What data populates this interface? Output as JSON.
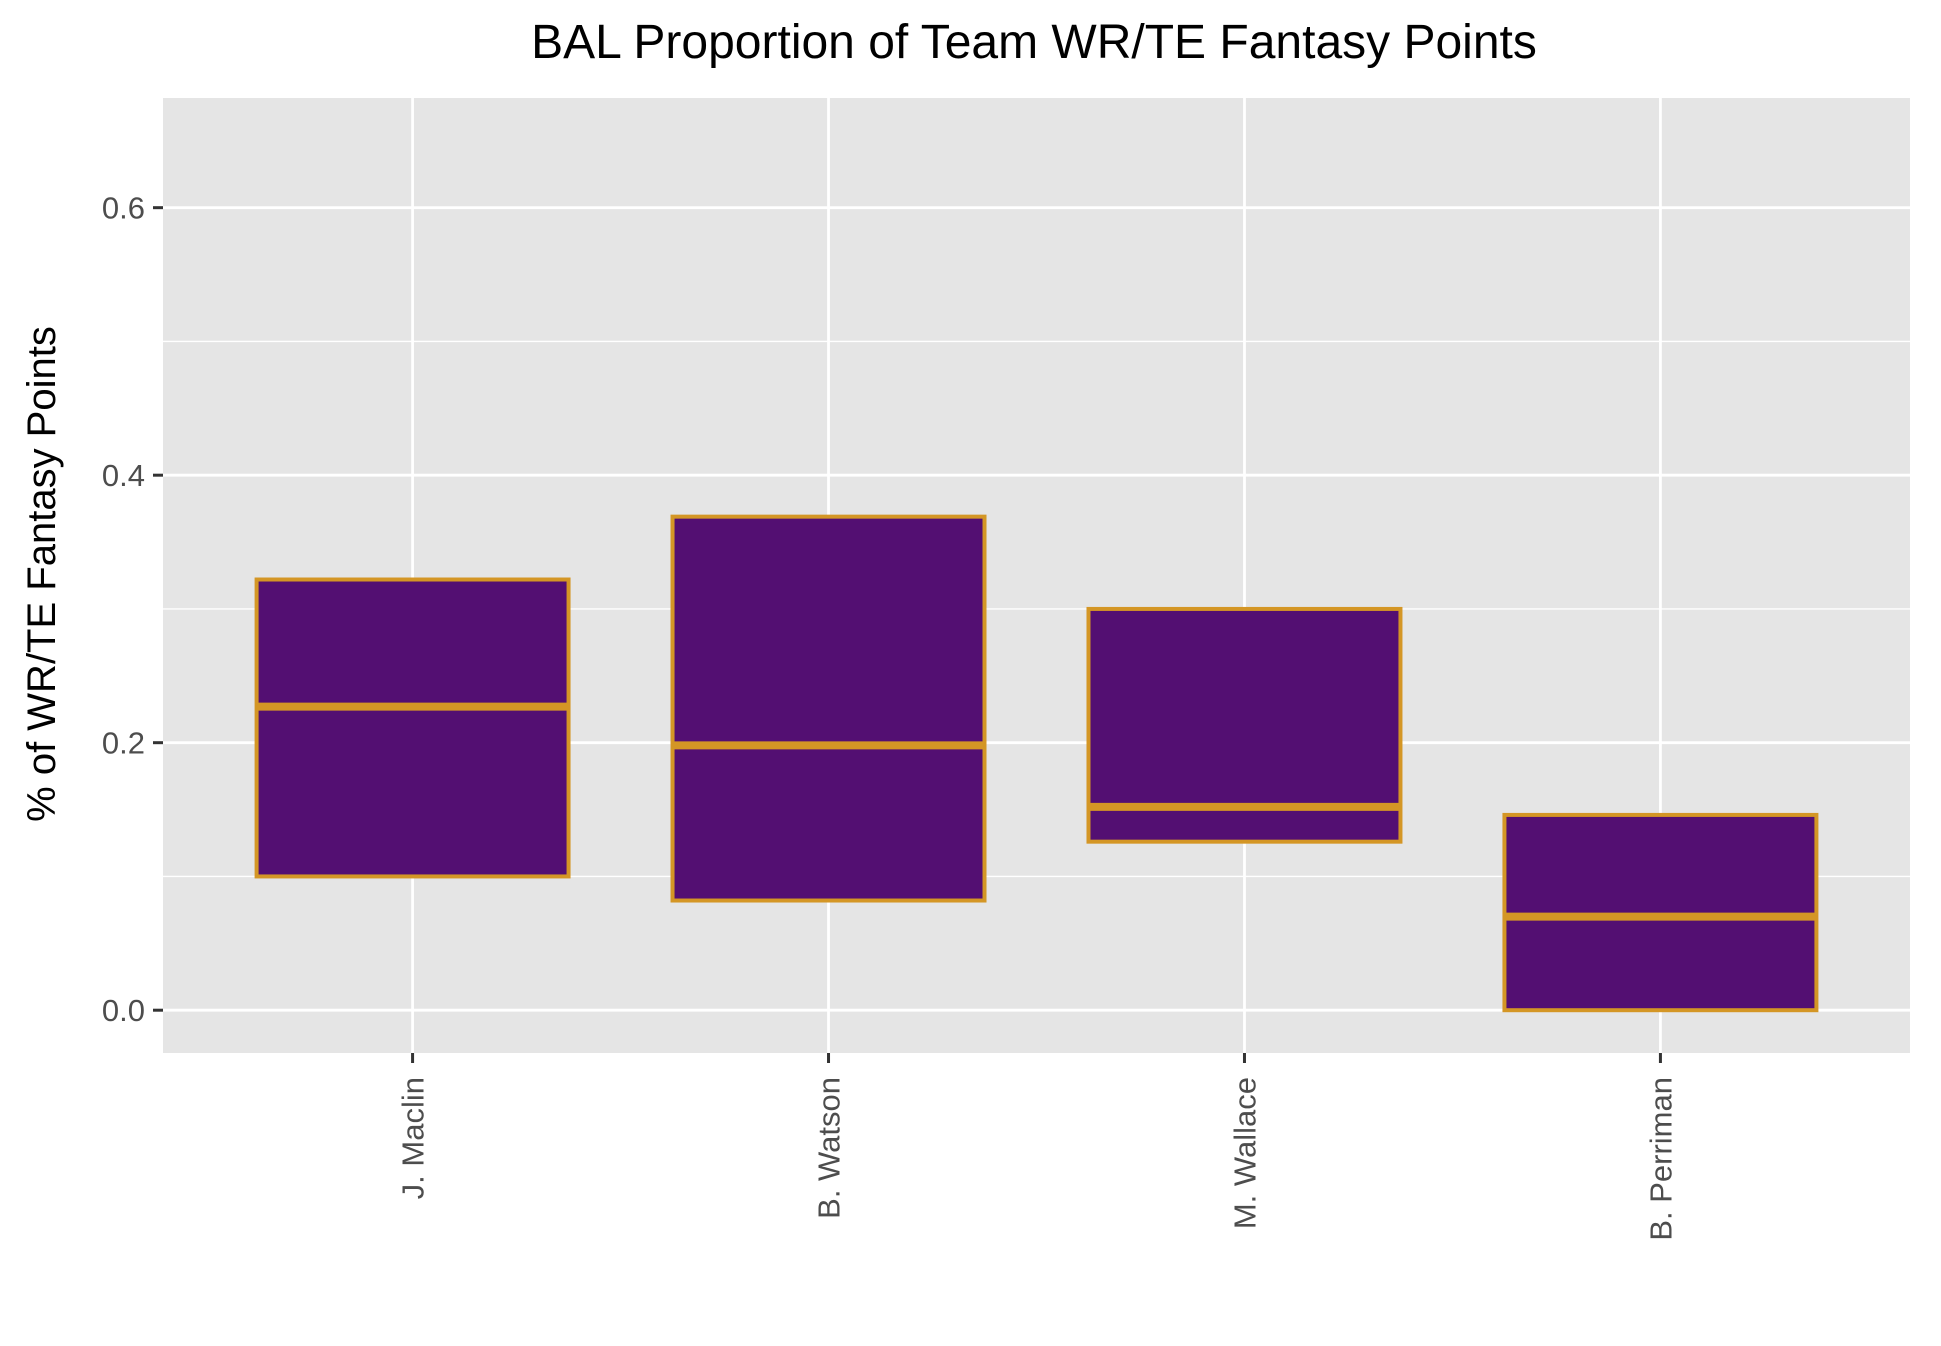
{
  "chart_data": {
    "type": "boxplot",
    "title": "BAL Proportion of Team WR/TE Fantasy Points",
    "xlabel": "",
    "ylabel": "% of WR/TE Fantasy Points",
    "categories": [
      "J. Maclin",
      "B. Watson",
      "M. Wallace",
      "B. Perriman"
    ],
    "boxes": [
      {
        "category": "J. Maclin",
        "q1": 0.1,
        "median": 0.227,
        "q3": 0.322
      },
      {
        "category": "B. Watson",
        "q1": 0.082,
        "median": 0.198,
        "q3": 0.369
      },
      {
        "category": "M. Wallace",
        "q1": 0.126,
        "median": 0.152,
        "q3": 0.3
      },
      {
        "category": "B. Perriman",
        "q1": 0.0,
        "median": 0.07,
        "q3": 0.146
      }
    ],
    "yticks": [
      0.0,
      0.2,
      0.4,
      0.6
    ],
    "ytick_labels": [
      "0.0",
      "0.2",
      "0.4",
      "0.6"
    ],
    "ylim": [
      -0.032,
      0.682
    ],
    "grid": true,
    "legend": "none",
    "colors": {
      "panel_background": "#E5E5E5",
      "grid_line": "#FFFFFF",
      "box_fill": "#530F72",
      "box_outline": "#D49625",
      "axis_text": "#4D4D4D",
      "title_text": "#000000"
    }
  }
}
